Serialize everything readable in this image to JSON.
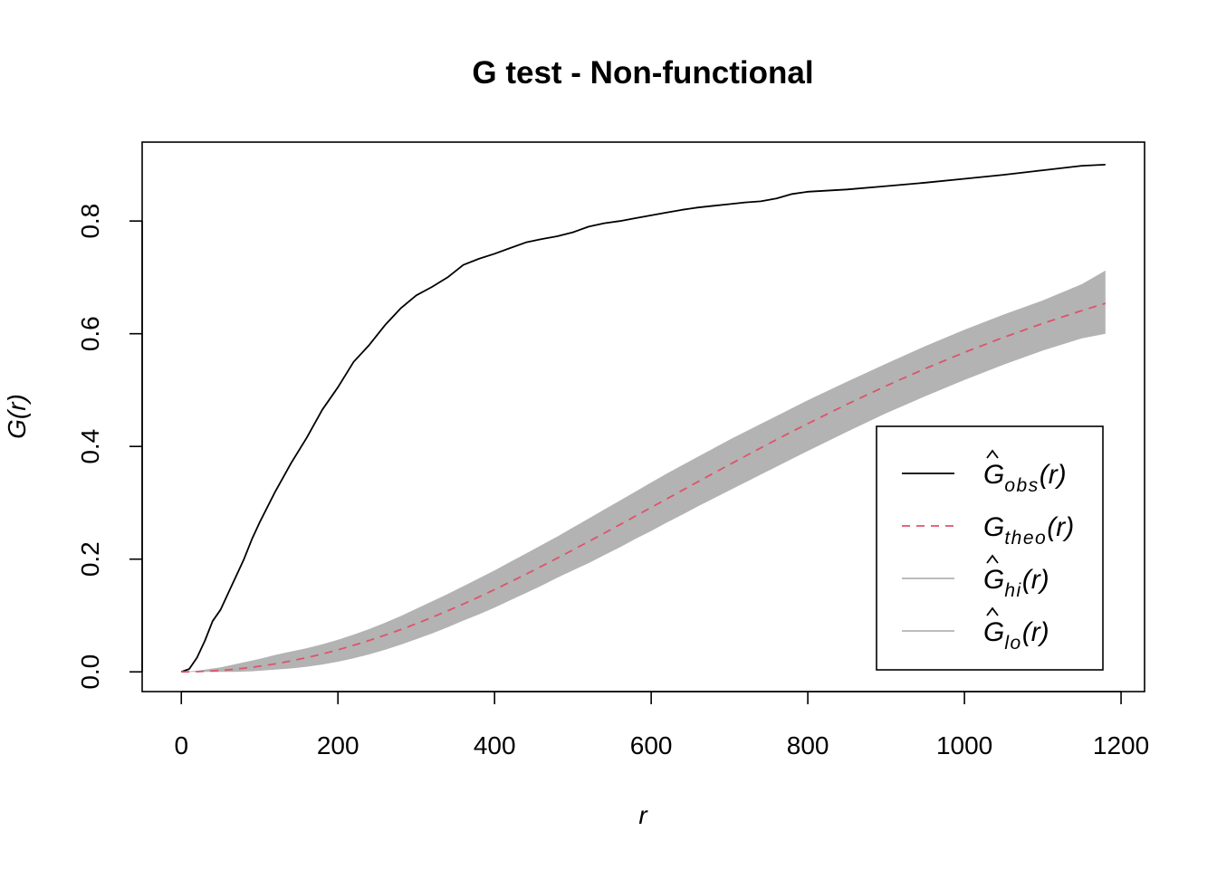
{
  "chart_data": {
    "type": "line",
    "title": "G test - Non-functional",
    "xlabel": "r",
    "ylabel": "G(r)",
    "xlim": [
      -50,
      1230
    ],
    "ylim": [
      -0.035,
      0.94
    ],
    "x_ticks": [
      0,
      200,
      400,
      600,
      800,
      1000,
      1200
    ],
    "y_ticks": [
      0.0,
      0.2,
      0.4,
      0.6,
      0.8
    ],
    "x_tick_labels": [
      "0",
      "200",
      "400",
      "600",
      "800",
      "1000",
      "1200"
    ],
    "y_tick_labels": [
      "0.0",
      "0.2",
      "0.4",
      "0.6",
      "0.8"
    ],
    "legend_position": "bottom-right",
    "x": [
      0,
      10,
      20,
      30,
      40,
      50,
      60,
      70,
      80,
      90,
      100,
      120,
      140,
      160,
      180,
      200,
      220,
      240,
      260,
      280,
      300,
      320,
      340,
      360,
      380,
      400,
      420,
      440,
      460,
      480,
      500,
      520,
      540,
      560,
      580,
      600,
      620,
      640,
      660,
      680,
      700,
      720,
      740,
      760,
      780,
      800,
      850,
      900,
      950,
      1000,
      1050,
      1100,
      1150,
      1180
    ],
    "series": [
      {
        "name": "obs",
        "role": "observed",
        "style": "solid",
        "color": "#000000",
        "values": [
          0.0,
          0.005,
          0.025,
          0.055,
          0.09,
          0.11,
          0.14,
          0.17,
          0.2,
          0.235,
          0.265,
          0.32,
          0.37,
          0.415,
          0.465,
          0.505,
          0.55,
          0.58,
          0.615,
          0.645,
          0.668,
          0.683,
          0.7,
          0.722,
          0.733,
          0.742,
          0.752,
          0.762,
          0.768,
          0.773,
          0.78,
          0.79,
          0.796,
          0.8,
          0.805,
          0.81,
          0.815,
          0.82,
          0.824,
          0.827,
          0.83,
          0.833,
          0.835,
          0.84,
          0.848,
          0.852,
          0.856,
          0.862,
          0.868,
          0.875,
          0.882,
          0.89,
          0.898,
          0.9
        ]
      },
      {
        "name": "theo",
        "role": "theoretical",
        "style": "dashed",
        "color": "#DF536B",
        "values": [
          0.0,
          0.0001,
          0.0004,
          0.0009,
          0.0016,
          0.0025,
          0.0036,
          0.0049,
          0.0064,
          0.0081,
          0.0099,
          0.0142,
          0.0193,
          0.0252,
          0.0317,
          0.039,
          0.047,
          0.0557,
          0.065,
          0.0749,
          0.0855,
          0.0966,
          0.1082,
          0.1204,
          0.133,
          0.146,
          0.1595,
          0.1732,
          0.1873,
          0.2017,
          0.2163,
          0.2311,
          0.2461,
          0.2612,
          0.2764,
          0.2917,
          0.307,
          0.3223,
          0.3375,
          0.3527,
          0.3677,
          0.3826,
          0.3974,
          0.412,
          0.4264,
          0.4405,
          0.4748,
          0.5074,
          0.5381,
          0.5669,
          0.5936,
          0.6183,
          0.6411,
          0.654
        ]
      },
      {
        "name": "hi",
        "role": "envelope-upper",
        "style": "band",
        "color": "#B3B3B3",
        "values": [
          0.0,
          0.001,
          0.002,
          0.004,
          0.006,
          0.008,
          0.011,
          0.014,
          0.017,
          0.02,
          0.023,
          0.03,
          0.036,
          0.042,
          0.049,
          0.057,
          0.066,
          0.076,
          0.087,
          0.099,
          0.112,
          0.125,
          0.138,
          0.152,
          0.166,
          0.18,
          0.195,
          0.21,
          0.225,
          0.24,
          0.256,
          0.272,
          0.288,
          0.304,
          0.32,
          0.336,
          0.352,
          0.367,
          0.382,
          0.397,
          0.412,
          0.426,
          0.44,
          0.454,
          0.468,
          0.482,
          0.515,
          0.547,
          0.578,
          0.607,
          0.634,
          0.659,
          0.688,
          0.712
        ]
      },
      {
        "name": "lo",
        "role": "envelope-lower",
        "style": "band",
        "color": "#B3B3B3",
        "values": [
          0.0,
          0.0,
          0.0,
          0.0,
          0.0,
          0.0,
          0.0,
          0.0,
          0.0005,
          0.001,
          0.002,
          0.004,
          0.006,
          0.009,
          0.013,
          0.018,
          0.024,
          0.031,
          0.039,
          0.048,
          0.058,
          0.068,
          0.079,
          0.091,
          0.102,
          0.114,
          0.127,
          0.14,
          0.153,
          0.167,
          0.18,
          0.193,
          0.207,
          0.221,
          0.236,
          0.25,
          0.265,
          0.279,
          0.294,
          0.308,
          0.322,
          0.336,
          0.35,
          0.364,
          0.378,
          0.392,
          0.426,
          0.459,
          0.489,
          0.518,
          0.545,
          0.57,
          0.592,
          0.6
        ]
      }
    ],
    "legend": {
      "entries": [
        {
          "series": "obs",
          "base": "G",
          "hat": true,
          "sub": "obs",
          "arg": "(r)"
        },
        {
          "series": "theo",
          "base": "G",
          "hat": false,
          "sub": "theo",
          "arg": "(r)"
        },
        {
          "series": "hi",
          "base": "G",
          "hat": true,
          "sub": "hi",
          "arg": "(r)"
        },
        {
          "series": "lo",
          "base": "G",
          "hat": true,
          "sub": "lo",
          "arg": "(r)"
        }
      ]
    }
  }
}
